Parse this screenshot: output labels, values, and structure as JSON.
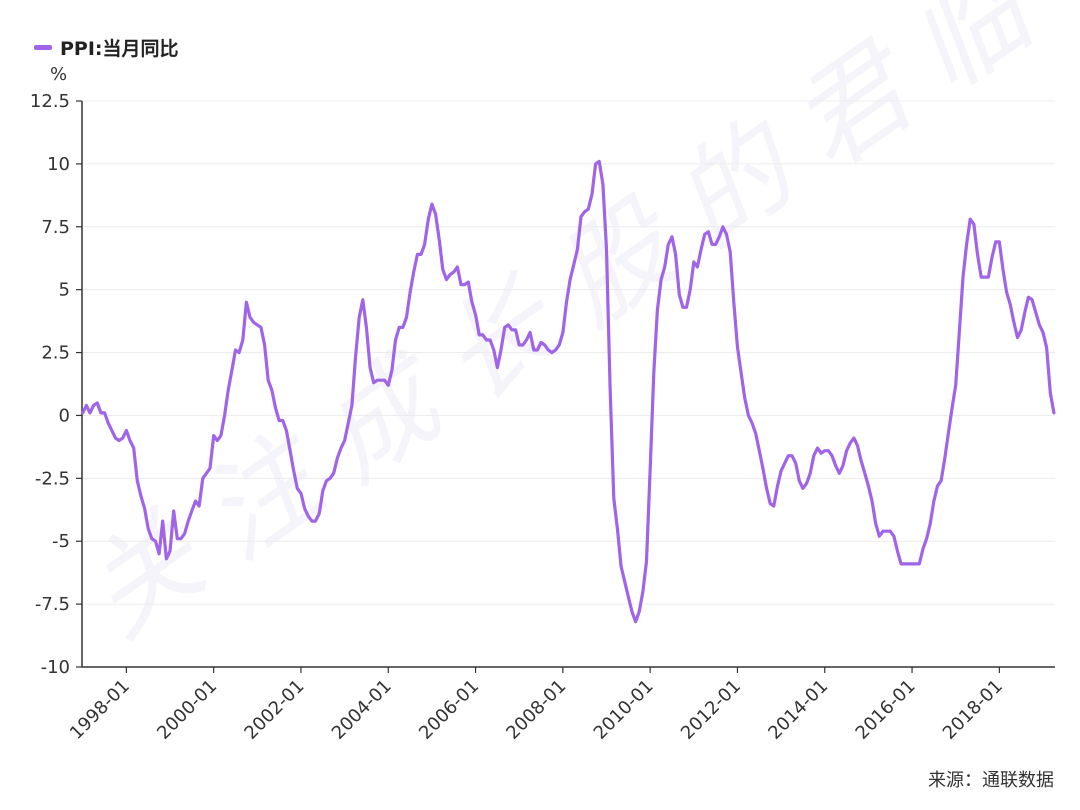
{
  "legend": {
    "label": "PPI:当月同比",
    "color": "#a064e8"
  },
  "unit": "%",
  "source": "来源：通联数据",
  "watermark": "关注成长股的君临",
  "chart_data": {
    "type": "line",
    "title": "",
    "xlabel": "",
    "ylabel": "%",
    "ylim": [
      -10,
      12.5
    ],
    "yticks": [
      12.5,
      10,
      7.5,
      5,
      2.5,
      0,
      -2.5,
      -5,
      -7.5,
      -10
    ],
    "ytick_labels": [
      "12.5",
      "10",
      "7.5",
      "5",
      "2.5",
      "0",
      "-2.5",
      "-5",
      "-7.5",
      "-10"
    ],
    "xticks": [
      "1998-01",
      "2000-01",
      "2002-01",
      "2004-01",
      "2006-01",
      "2008-01",
      "2010-01",
      "2012-01",
      "2014-01",
      "2016-01",
      "2018-01"
    ],
    "xlim": [
      "1997-01",
      "2018-12"
    ],
    "grid": true,
    "legend_position": "top-left",
    "series": [
      {
        "name": "PPI:当月同比",
        "color": "#a064e8",
        "points": [
          [
            "1997-01",
            0.1
          ],
          [
            "1997-02",
            0.4
          ],
          [
            "1997-03",
            0.1
          ],
          [
            "1997-04",
            0.4
          ],
          [
            "1997-05",
            0.5
          ],
          [
            "1997-06",
            0.1
          ],
          [
            "1997-07",
            0.1
          ],
          [
            "1997-08",
            -0.3
          ],
          [
            "1997-09",
            -0.6
          ],
          [
            "1997-10",
            -0.9
          ],
          [
            "1997-11",
            -1.0
          ],
          [
            "1997-12",
            -0.9
          ],
          [
            "1998-01",
            -0.6
          ],
          [
            "1998-02",
            -1.0
          ],
          [
            "1998-03",
            -1.3
          ],
          [
            "1998-04",
            -2.6
          ],
          [
            "1998-05",
            -3.2
          ],
          [
            "1998-06",
            -3.7
          ],
          [
            "1998-07",
            -4.5
          ],
          [
            "1998-08",
            -4.9
          ],
          [
            "1998-09",
            -5.0
          ],
          [
            "1998-10",
            -5.5
          ],
          [
            "1998-11",
            -4.2
          ],
          [
            "1998-12",
            -5.7
          ],
          [
            "1999-01",
            -5.4
          ],
          [
            "1999-02",
            -3.8
          ],
          [
            "1999-03",
            -4.9
          ],
          [
            "1999-04",
            -4.9
          ],
          [
            "1999-05",
            -4.7
          ],
          [
            "1999-06",
            -4.2
          ],
          [
            "1999-07",
            -3.8
          ],
          [
            "1999-08",
            -3.4
          ],
          [
            "1999-09",
            -3.6
          ],
          [
            "1999-10",
            -2.5
          ],
          [
            "1999-11",
            -2.3
          ],
          [
            "1999-12",
            -2.1
          ],
          [
            "2000-01",
            -0.8
          ],
          [
            "2000-02",
            -1.0
          ],
          [
            "2000-03",
            -0.8
          ],
          [
            "2000-04",
            0.0
          ],
          [
            "2000-05",
            1.0
          ],
          [
            "2000-06",
            1.8
          ],
          [
            "2000-07",
            2.6
          ],
          [
            "2000-08",
            2.5
          ],
          [
            "2000-09",
            3.0
          ],
          [
            "2000-10",
            4.5
          ],
          [
            "2000-11",
            3.9
          ],
          [
            "2000-12",
            3.7
          ],
          [
            "2001-01",
            3.6
          ],
          [
            "2001-02",
            3.5
          ],
          [
            "2001-03",
            2.8
          ],
          [
            "2001-04",
            1.4
          ],
          [
            "2001-05",
            1.0
          ],
          [
            "2001-06",
            0.3
          ],
          [
            "2001-07",
            -0.2
          ],
          [
            "2001-08",
            -0.2
          ],
          [
            "2001-09",
            -0.6
          ],
          [
            "2001-10",
            -1.4
          ],
          [
            "2001-11",
            -2.2
          ],
          [
            "2001-12",
            -2.9
          ],
          [
            "2002-01",
            -3.1
          ],
          [
            "2002-02",
            -3.7
          ],
          [
            "2002-03",
            -4.0
          ],
          [
            "2002-04",
            -4.2
          ],
          [
            "2002-05",
            -4.2
          ],
          [
            "2002-06",
            -3.9
          ],
          [
            "2002-07",
            -3.0
          ],
          [
            "2002-08",
            -2.6
          ],
          [
            "2002-09",
            -2.5
          ],
          [
            "2002-10",
            -2.3
          ],
          [
            "2002-11",
            -1.7
          ],
          [
            "2002-12",
            -1.3
          ],
          [
            "2003-01",
            -1.0
          ],
          [
            "2003-02",
            -0.3
          ],
          [
            "2003-03",
            0.4
          ],
          [
            "2003-04",
            2.3
          ],
          [
            "2003-05",
            3.9
          ],
          [
            "2003-06",
            4.6
          ],
          [
            "2003-07",
            3.5
          ],
          [
            "2003-08",
            1.9
          ],
          [
            "2003-09",
            1.3
          ],
          [
            "2003-10",
            1.4
          ],
          [
            "2003-11",
            1.4
          ],
          [
            "2003-12",
            1.4
          ],
          [
            "2004-01",
            1.2
          ],
          [
            "2004-02",
            1.8
          ],
          [
            "2004-03",
            3.0
          ],
          [
            "2004-04",
            3.5
          ],
          [
            "2004-05",
            3.5
          ],
          [
            "2004-06",
            3.9
          ],
          [
            "2004-07",
            4.9
          ],
          [
            "2004-08",
            5.7
          ],
          [
            "2004-09",
            6.4
          ],
          [
            "2004-10",
            6.4
          ],
          [
            "2004-11",
            6.8
          ],
          [
            "2004-12",
            7.8
          ],
          [
            "2005-01",
            8.4
          ],
          [
            "2005-02",
            8.0
          ],
          [
            "2005-03",
            7.0
          ],
          [
            "2005-04",
            5.8
          ],
          [
            "2005-05",
            5.4
          ],
          [
            "2005-06",
            5.6
          ],
          [
            "2005-07",
            5.7
          ],
          [
            "2005-08",
            5.9
          ],
          [
            "2005-09",
            5.2
          ],
          [
            "2005-10",
            5.2
          ],
          [
            "2005-11",
            5.3
          ],
          [
            "2005-12",
            4.5
          ],
          [
            "2006-01",
            4.0
          ],
          [
            "2006-02",
            3.2
          ],
          [
            "2006-03",
            3.2
          ],
          [
            "2006-04",
            3.0
          ],
          [
            "2006-05",
            3.0
          ],
          [
            "2006-06",
            2.6
          ],
          [
            "2006-07",
            1.9
          ],
          [
            "2006-08",
            2.6
          ],
          [
            "2006-09",
            3.5
          ],
          [
            "2006-10",
            3.6
          ],
          [
            "2006-11",
            3.4
          ],
          [
            "2006-12",
            3.4
          ],
          [
            "2007-01",
            2.8
          ],
          [
            "2007-02",
            2.8
          ],
          [
            "2007-03",
            3.0
          ],
          [
            "2007-04",
            3.3
          ],
          [
            "2007-05",
            2.6
          ],
          [
            "2007-06",
            2.6
          ],
          [
            "2007-07",
            2.9
          ],
          [
            "2007-08",
            2.8
          ],
          [
            "2007-09",
            2.6
          ],
          [
            "2007-10",
            2.5
          ],
          [
            "2007-11",
            2.6
          ],
          [
            "2007-12",
            2.8
          ],
          [
            "2008-01",
            3.3
          ],
          [
            "2008-02",
            4.5
          ],
          [
            "2008-03",
            5.4
          ],
          [
            "2008-04",
            6.0
          ],
          [
            "2008-05",
            6.6
          ],
          [
            "2008-06",
            7.9
          ],
          [
            "2008-07",
            8.1
          ],
          [
            "2008-08",
            8.2
          ],
          [
            "2008-09",
            8.8
          ],
          [
            "2008-10",
            10.0
          ],
          [
            "2008-11",
            10.1
          ],
          [
            "2008-12",
            9.2
          ],
          [
            "2009-01",
            6.6
          ],
          [
            "2009-02",
            1.1
          ],
          [
            "2009-03",
            -3.3
          ],
          [
            "2009-04",
            -4.5
          ],
          [
            "2009-05",
            -6.0
          ],
          [
            "2009-06",
            -6.6
          ],
          [
            "2009-07",
            -7.2
          ],
          [
            "2009-08",
            -7.8
          ],
          [
            "2009-09",
            -8.2
          ],
          [
            "2009-10",
            -7.8
          ],
          [
            "2009-11",
            -7.0
          ],
          [
            "2009-12",
            -5.8
          ],
          [
            "2010-01",
            -2.1
          ],
          [
            "2010-02",
            1.7
          ],
          [
            "2010-03",
            4.2
          ],
          [
            "2010-04",
            5.4
          ],
          [
            "2010-05",
            5.9
          ],
          [
            "2010-06",
            6.8
          ],
          [
            "2010-07",
            7.1
          ],
          [
            "2010-08",
            6.4
          ],
          [
            "2010-09",
            4.8
          ],
          [
            "2010-10",
            4.3
          ],
          [
            "2010-11",
            4.3
          ],
          [
            "2010-12",
            5.0
          ],
          [
            "2011-01",
            6.1
          ],
          [
            "2011-02",
            5.9
          ],
          [
            "2011-03",
            6.6
          ],
          [
            "2011-04",
            7.2
          ],
          [
            "2011-05",
            7.3
          ],
          [
            "2011-06",
            6.8
          ],
          [
            "2011-07",
            6.8
          ],
          [
            "2011-08",
            7.1
          ],
          [
            "2011-09",
            7.5
          ],
          [
            "2011-10",
            7.2
          ],
          [
            "2011-11",
            6.5
          ],
          [
            "2011-12",
            4.5
          ],
          [
            "2012-01",
            2.7
          ],
          [
            "2012-02",
            1.7
          ],
          [
            "2012-03",
            0.7
          ],
          [
            "2012-04",
            0.0
          ],
          [
            "2012-05",
            -0.3
          ],
          [
            "2012-06",
            -0.7
          ],
          [
            "2012-07",
            -1.4
          ],
          [
            "2012-08",
            -2.1
          ],
          [
            "2012-09",
            -2.9
          ],
          [
            "2012-10",
            -3.5
          ],
          [
            "2012-11",
            -3.6
          ],
          [
            "2012-12",
            -2.8
          ],
          [
            "2013-01",
            -2.2
          ],
          [
            "2013-02",
            -1.9
          ],
          [
            "2013-03",
            -1.6
          ],
          [
            "2013-04",
            -1.6
          ],
          [
            "2013-05",
            -1.9
          ],
          [
            "2013-06",
            -2.6
          ],
          [
            "2013-07",
            -2.9
          ],
          [
            "2013-08",
            -2.7
          ],
          [
            "2013-09",
            -2.3
          ],
          [
            "2013-10",
            -1.6
          ],
          [
            "2013-11",
            -1.3
          ],
          [
            "2013-12",
            -1.5
          ],
          [
            "2014-01",
            -1.4
          ],
          [
            "2014-02",
            -1.4
          ],
          [
            "2014-03",
            -1.6
          ],
          [
            "2014-04",
            -2.0
          ],
          [
            "2014-05",
            -2.3
          ],
          [
            "2014-06",
            -2.0
          ],
          [
            "2014-07",
            -1.4
          ],
          [
            "2014-08",
            -1.1
          ],
          [
            "2014-09",
            -0.9
          ],
          [
            "2014-10",
            -1.2
          ],
          [
            "2014-11",
            -1.8
          ],
          [
            "2014-12",
            -2.3
          ],
          [
            "2015-01",
            -2.8
          ],
          [
            "2015-02",
            -3.4
          ],
          [
            "2015-03",
            -4.3
          ],
          [
            "2015-04",
            -4.8
          ],
          [
            "2015-05",
            -4.6
          ],
          [
            "2015-06",
            -4.6
          ],
          [
            "2015-07",
            -4.6
          ],
          [
            "2015-08",
            -4.8
          ],
          [
            "2015-09",
            -5.4
          ],
          [
            "2015-10",
            -5.9
          ],
          [
            "2015-11",
            -5.9
          ],
          [
            "2015-12",
            -5.9
          ],
          [
            "2016-01",
            -5.9
          ],
          [
            "2016-02",
            -5.9
          ],
          [
            "2016-03",
            -5.9
          ],
          [
            "2016-04",
            -5.3
          ],
          [
            "2016-05",
            -4.9
          ],
          [
            "2016-06",
            -4.3
          ],
          [
            "2016-07",
            -3.4
          ],
          [
            "2016-08",
            -2.8
          ],
          [
            "2016-09",
            -2.6
          ],
          [
            "2016-10",
            -1.7
          ],
          [
            "2016-11",
            -0.7
          ],
          [
            "2016-12",
            0.3
          ],
          [
            "2017-01",
            1.2
          ],
          [
            "2017-02",
            3.3
          ],
          [
            "2017-03",
            5.5
          ],
          [
            "2017-04",
            6.8
          ],
          [
            "2017-05",
            7.8
          ],
          [
            "2017-06",
            7.6
          ],
          [
            "2017-07",
            6.4
          ],
          [
            "2017-08",
            5.5
          ],
          [
            "2017-09",
            5.5
          ],
          [
            "2017-10",
            5.5
          ],
          [
            "2017-11",
            6.3
          ],
          [
            "2017-12",
            6.9
          ],
          [
            "2018-01",
            6.9
          ],
          [
            "2018-02",
            5.8
          ],
          [
            "2018-03",
            4.9
          ],
          [
            "2018-04",
            4.4
          ],
          [
            "2018-05",
            3.7
          ],
          [
            "2018-06",
            3.1
          ],
          [
            "2018-07",
            3.4
          ],
          [
            "2018-08",
            4.1
          ],
          [
            "2018-09",
            4.7
          ],
          [
            "2018-10",
            4.6
          ],
          [
            "2018-11",
            4.1
          ],
          [
            "2018-12",
            3.6
          ],
          [
            "2019-01",
            3.3
          ],
          [
            "2019-02",
            2.7
          ],
          [
            "2019-03",
            0.9
          ],
          [
            "2019-04",
            0.1
          ]
        ]
      }
    ]
  }
}
